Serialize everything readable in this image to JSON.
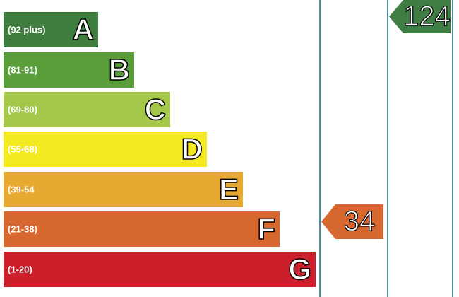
{
  "bands": [
    {
      "range": "(92 plus)",
      "letter": "A",
      "color": "#3f7d3e"
    },
    {
      "range": "(81-91)",
      "letter": "B",
      "color": "#5a9e3c"
    },
    {
      "range": "(69-80)",
      "letter": "C",
      "color": "#a5c84b"
    },
    {
      "range": "(55-68)",
      "letter": "D",
      "color": "#f5ea22"
    },
    {
      "range": "(39-54",
      "letter": "E",
      "color": "#e8a932"
    },
    {
      "range": "(21-38)",
      "letter": "F",
      "color": "#d6682f"
    },
    {
      "range": "(1-20)",
      "letter": "G",
      "color": "#cb1f2c"
    }
  ],
  "current": {
    "value": "34",
    "color": "#d6682f"
  },
  "potential": {
    "value": "124",
    "color": "#3f7d45"
  }
}
